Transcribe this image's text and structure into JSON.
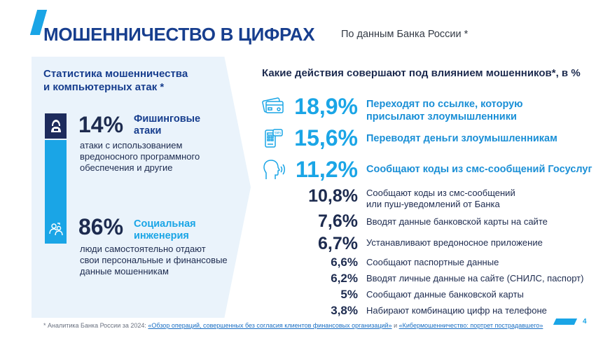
{
  "header": {
    "title": "МОШЕННИЧЕСТВО В ЦИФРАХ",
    "subtitle": "По данным Банка России *"
  },
  "left": {
    "heading_line1": "Статистика мошенничества",
    "heading_line2": "и компьютерных атак *",
    "stat1": {
      "percent": "14%",
      "caption_line1": "Фишинговые",
      "caption_line2": "атаки",
      "desc_line1": "атаки с использованием",
      "desc_line2": "вредоносного программного",
      "desc_line3": "обеспечения и другие",
      "icon": "hacker-icon"
    },
    "stat2": {
      "percent": "86%",
      "caption_line1": "Социальная",
      "caption_line2": "инженерия",
      "desc_line1": "люди самостоятельно отдают",
      "desc_line2": "свои персональные и финансовые",
      "desc_line3": "данные мошенникам",
      "icon": "people-icon"
    }
  },
  "right": {
    "heading": "Какие действия совершают под влиянием мошенников*, в %",
    "items": [
      {
        "percent": "18,9%",
        "line1": "Переходят по ссылке, которую",
        "line2": "присылают злоумышленники",
        "icon": "card-icon"
      },
      {
        "percent": "15,6%",
        "line1": "Переводят деньги злоумышленникам",
        "icon": "phone-sms-icon"
      },
      {
        "percent": "11,2%",
        "line1": "Сообщают коды из смс-сообщений Госуслуг",
        "icon": "speaking-head-icon"
      },
      {
        "percent": "10,8%",
        "line1": "Сообщают коды из смс-сообщений",
        "line2": "или пуш-уведомлений от Банка"
      },
      {
        "percent": "7,6%",
        "line1": "Вводят данные банковской карты на сайте"
      },
      {
        "percent": "6,7%",
        "line1": "Устанавливают вредоносное приложение"
      },
      {
        "percent": "6,6%",
        "line1": "Сообщают паспортные данные"
      },
      {
        "percent": "6,2%",
        "line1": "Вводят личные данные на сайте (СНИЛС, паспорт)"
      },
      {
        "percent": "5%",
        "line1": "Сообщают данные банковской карты"
      },
      {
        "percent": "3,8%",
        "line1": "Набирают комбинацию цифр на телефоне"
      }
    ]
  },
  "footnote": {
    "prefix": "* Аналитика Банка России за 2024: ",
    "link1": "«Обзор операций, совершенных без согласия клиентов финансовых организаций»",
    "middle": " и ",
    "link2": "«Кибермошенничество: портрет пострадавшего»"
  },
  "page_number": "4",
  "colors": {
    "brand_dark": "#173e8e",
    "accent": "#1aa5e6",
    "panel_bg": "#eaf3fb"
  }
}
